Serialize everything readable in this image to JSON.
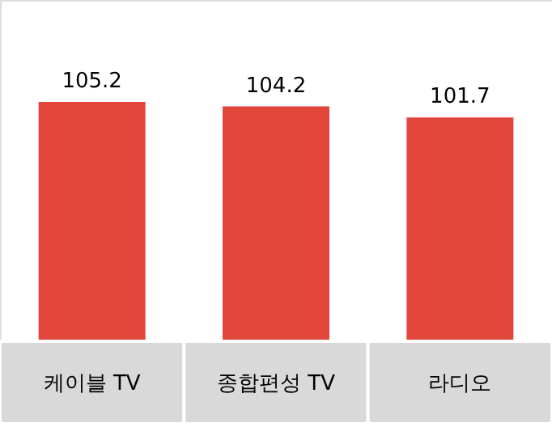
{
  "chart_data": {
    "type": "bar",
    "categories": [
      "케이블 TV",
      "종합편성 TV",
      "라디오"
    ],
    "values": [
      105.2,
      104.2,
      101.7
    ],
    "color": "#e2453c",
    "ylim": [
      52,
      128
    ],
    "data_labels": true,
    "grid": false
  }
}
